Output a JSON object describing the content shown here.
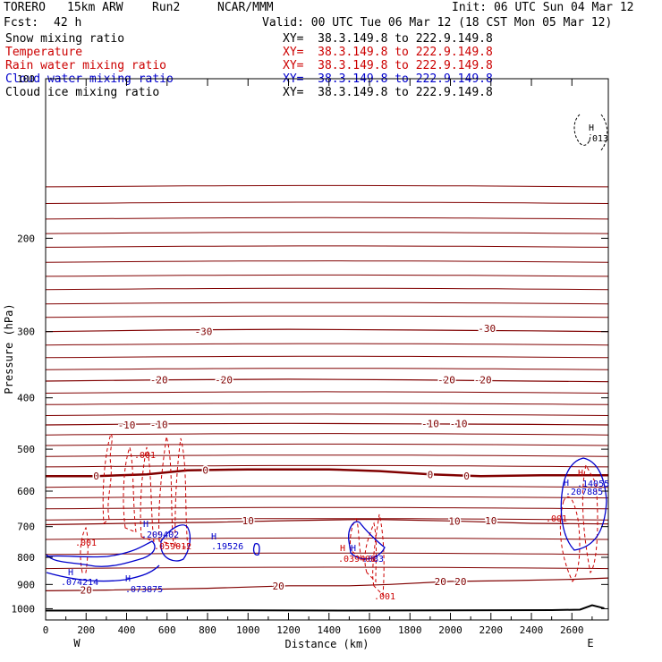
{
  "header": {
    "model": "TORERO",
    "resolution": "15km ARW",
    "run": "Run2",
    "center": "NCAR/MMM",
    "init": "Init: 06 UTC Sun 04 Mar 12",
    "fcst_label": "Fcst:",
    "fcst_value": "42 h",
    "valid": "Valid: 00 UTC Tue 06 Mar 12 (18 CST Mon 05 Mar 12)"
  },
  "fields": [
    {
      "name": "Snow mixing ratio",
      "color": "#000000",
      "xy": "XY=  38.3.149.8 to 222.9.149.8",
      "xy_color": "#000000"
    },
    {
      "name": "Temperature",
      "color": "#cc0000",
      "xy": "XY=  38.3.149.8 to 222.9.149.8",
      "xy_color": "#cc0000"
    },
    {
      "name": "Rain water mixing ratio",
      "color": "#cc0000",
      "xy": "XY=  38.3.149.8 to 222.9.149.8",
      "xy_color": "#cc0000"
    },
    {
      "name": "Cloud water mixing ratio",
      "color": "#0000cc",
      "xy": "XY=  38.3.149.8 to 222.9.149.8",
      "xy_color": "#0000cc"
    },
    {
      "name": "Cloud ice mixing ratio",
      "color": "#000000",
      "xy": "XY=  38.3.149.8 to 222.9.149.8",
      "xy_color": "#000000"
    }
  ],
  "chart_data": {
    "type": "line",
    "title": "",
    "xlabel": "Distance (km)",
    "ylabel": "Pressure (hPa)",
    "xlim": [
      0,
      2780
    ],
    "ylim": [
      1050,
      100
    ],
    "y_log": true,
    "x_ticks": [
      0,
      200,
      400,
      600,
      800,
      1000,
      1200,
      1400,
      1600,
      1800,
      2000,
      2200,
      2400,
      2600
    ],
    "y_ticks": [
      100,
      200,
      300,
      400,
      500,
      600,
      700,
      800,
      900,
      1000
    ],
    "x_end_labels": {
      "left": "W",
      "right": "E"
    },
    "temperature_contours": [
      {
        "label": "-30",
        "x": [
          0,
          600,
          1200,
          1800,
          2400,
          2780
        ],
        "y": [
          300,
          298,
          297,
          298,
          299,
          300
        ],
        "label_at": [
          [
            780,
            300
          ],
          [
            2180,
            296
          ]
        ]
      },
      {
        "label": "-20",
        "x": [
          0,
          600,
          1200,
          1800,
          2400,
          2780
        ],
        "y": [
          372,
          370,
          369,
          370,
          372,
          373
        ],
        "label_at": [
          [
            560,
            370
          ],
          [
            880,
            370
          ],
          [
            1980,
            370
          ],
          [
            2160,
            370
          ]
        ]
      },
      {
        "label": "-10",
        "x": [
          0,
          600,
          1200,
          1800,
          2400,
          2780
        ],
        "y": [
          450,
          448,
          447,
          448,
          449,
          450
        ],
        "label_at": [
          [
            400,
            450
          ],
          [
            560,
            449
          ],
          [
            1900,
            447
          ],
          [
            2040,
            447
          ]
        ]
      },
      {
        "label": "0",
        "x": [
          0,
          250,
          500,
          700,
          1000,
          1400,
          1650,
          1900,
          2150,
          2450,
          2780
        ],
        "y": [
          562,
          562,
          558,
          548,
          546,
          546,
          550,
          558,
          562,
          560,
          560
        ],
        "label_at": [
          [
            250,
            562
          ],
          [
            790,
            548
          ],
          [
            1900,
            558
          ],
          [
            2080,
            562
          ]
        ]
      },
      {
        "label": "10",
        "x": [
          0,
          400,
          800,
          1200,
          1600,
          2000,
          2400,
          2780
        ],
        "y": [
          694,
          690,
          687,
          682,
          678,
          683,
          690,
          692
        ],
        "label_at": [
          [
            1000,
            682
          ],
          [
            2020,
            683
          ],
          [
            2200,
            682
          ]
        ]
      },
      {
        "label": "20",
        "x": [
          0,
          300,
          800,
          1200,
          1500,
          1700,
          2000,
          2300,
          2600,
          2780
        ],
        "y": [
          925,
          922,
          915,
          905,
          905,
          900,
          888,
          885,
          880,
          875
        ],
        "label_at": [
          [
            200,
            922
          ],
          [
            1150,
            905
          ],
          [
            1950,
            888
          ],
          [
            2050,
            888
          ]
        ]
      }
    ],
    "temperature_extra_levels": [
      160,
      172,
      184,
      196,
      208,
      222,
      236,
      250,
      266,
      282,
      318,
      336,
      354,
      392,
      412,
      432,
      470,
      492,
      516,
      540,
      590,
      618,
      648,
      680,
      740,
      790,
      840
    ],
    "cloud_water_labels": [
      ".074214",
      ".209402",
      ".19526",
      ".073875",
      ".083",
      ".207885",
      ".14055"
    ],
    "rain_water_labels": [
      ".001",
      ".059012",
      ".001",
      ".039408",
      ".001",
      ".001"
    ],
    "ice_labels": [
      ".013"
    ],
    "maxima_markers": [
      "H",
      "H",
      "H",
      "H",
      "H",
      "H",
      "H",
      "H",
      "H"
    ],
    "contour_labels_note": "",
    "grid": false,
    "legend": "top-left text block"
  }
}
